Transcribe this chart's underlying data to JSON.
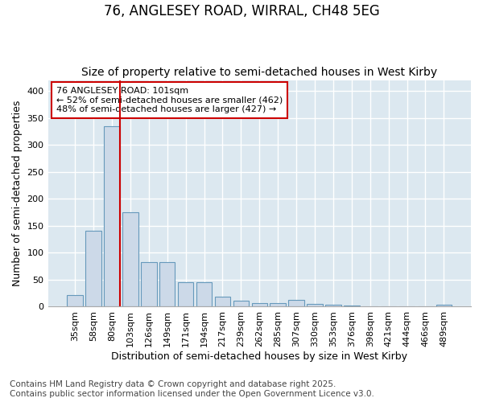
{
  "title1": "76, ANGLESEY ROAD, WIRRAL, CH48 5EG",
  "title2": "Size of property relative to semi-detached houses in West Kirby",
  "xlabel": "Distribution of semi-detached houses by size in West Kirby",
  "ylabel": "Number of semi-detached properties",
  "categories": [
    "35sqm",
    "58sqm",
    "80sqm",
    "103sqm",
    "126sqm",
    "149sqm",
    "171sqm",
    "194sqm",
    "217sqm",
    "239sqm",
    "262sqm",
    "285sqm",
    "307sqm",
    "330sqm",
    "353sqm",
    "376sqm",
    "398sqm",
    "421sqm",
    "444sqm",
    "466sqm",
    "489sqm"
  ],
  "values": [
    22,
    140,
    335,
    175,
    82,
    82,
    45,
    45,
    18,
    11,
    7,
    7,
    13,
    5,
    4,
    2,
    1,
    1,
    0,
    1,
    4
  ],
  "bar_color": "#ccd9e8",
  "bar_edge_color": "#6699bb",
  "highlight_index": 2,
  "highlight_line_color": "#cc0000",
  "annotation_text": "76 ANGLESEY ROAD: 101sqm\n← 52% of semi-detached houses are smaller (462)\n48% of semi-detached houses are larger (427) →",
  "annotation_box_color": "#ffffff",
  "annotation_box_edge": "#cc0000",
  "ylim": [
    0,
    420
  ],
  "yticks": [
    0,
    50,
    100,
    150,
    200,
    250,
    300,
    350,
    400
  ],
  "footer": "Contains HM Land Registry data © Crown copyright and database right 2025.\nContains public sector information licensed under the Open Government Licence v3.0.",
  "fig_bg_color": "#ffffff",
  "plot_bg_color": "#dce8f0",
  "grid_color": "#ffffff",
  "title1_fontsize": 12,
  "title2_fontsize": 10,
  "axis_label_fontsize": 9,
  "tick_fontsize": 8,
  "footer_fontsize": 7.5
}
